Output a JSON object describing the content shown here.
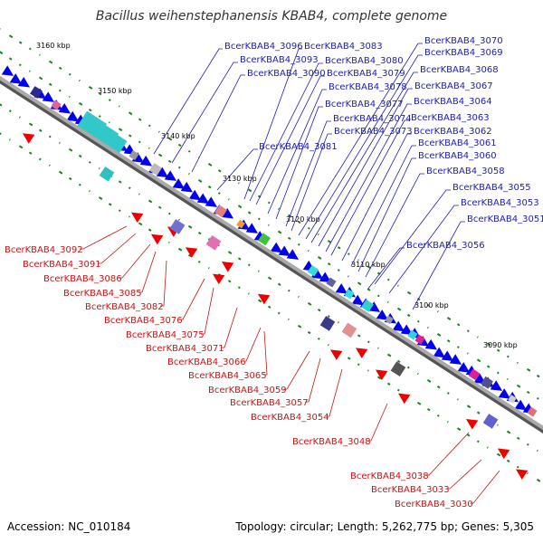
{
  "title": "Bacillus weihenstephanensis KBAB4, complete genome",
  "accession": "Accession: NC_010184",
  "summary": "Topology: circular; Length: 5,262,775 bp; Genes: 5,305",
  "colors": {
    "backbone": "#888888",
    "forward_cds": "#0000ee",
    "reverse_cds": "#ee0000",
    "forward_label": "#1c1cb4",
    "reverse_label": "#c81414",
    "gc_dots": "#208020"
  },
  "ticks": [
    {
      "label": "3160 kbp"
    },
    {
      "label": "3150 kbp"
    },
    {
      "label": "3140 kbp"
    },
    {
      "label": "3130 kbp"
    },
    {
      "label": "3120 kbp"
    },
    {
      "label": "3110 kbp"
    },
    {
      "label": "3100 kbp"
    },
    {
      "label": "3090 kbp"
    }
  ],
  "forward_labels": [
    "BcerKBAB4_3096",
    "BcerKBAB4_3093",
    "BcerKBAB4_3090",
    "BcerKBAB4_3081",
    "BcerKBAB4_3083",
    "BcerKBAB4_3080",
    "BcerKBAB4_3079",
    "BcerKBAB4_3078",
    "BcerKBAB4_3077",
    "BcerKBAB4_3074",
    "BcerKBAB4_3073",
    "BcerKBAB4_3070",
    "BcerKBAB4_3069",
    "BcerKBAB4_3068",
    "BcerKBAB4_3067",
    "BcerKBAB4_3064",
    "BcerKBAB4_3063",
    "BcerKBAB4_3062",
    "BcerKBAB4_3061",
    "BcerKBAB4_3060",
    "BcerKBAB4_3058",
    "BcerKBAB4_3055",
    "BcerKBAB4_3053",
    "BcerKBAB4_3051",
    "BcerKBAB4_3056"
  ],
  "reverse_labels": [
    "BcerKBAB4_3092",
    "BcerKBAB4_3091",
    "BcerKBAB4_3086",
    "BcerKBAB4_3085",
    "BcerKBAB4_3082",
    "BcerKBAB4_3076",
    "BcerKBAB4_3075",
    "BcerKBAB4_3071",
    "BcerKBAB4_3066",
    "BcerKBAB4_3065",
    "BcerKBAB4_3059",
    "BcerKBAB4_3057",
    "BcerKBAB4_3054",
    "BcerKBAB4_3048",
    "BcerKBAB4_3038",
    "BcerKBAB4_3033",
    "BcerKBAB4_3030"
  ]
}
